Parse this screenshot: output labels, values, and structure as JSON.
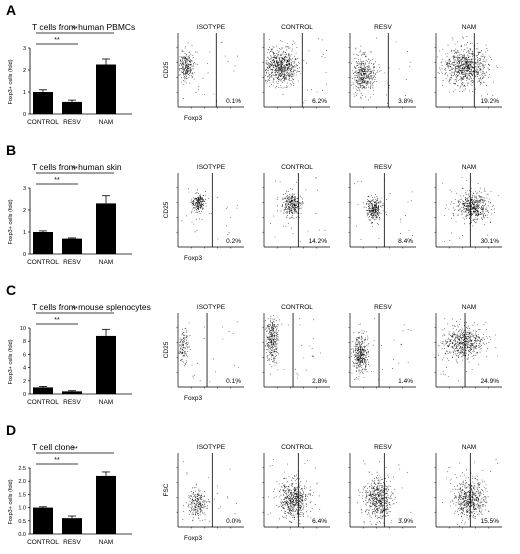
{
  "panels": [
    {
      "letter": "A",
      "title": "T cells from human PBMCs",
      "bar_ylabel": "Foxp3+ cells (fold)",
      "flow_ylabel": "CD25",
      "flow_xlabel": "Foxp3",
      "flow_titles": [
        "ISOTYPE",
        "CONTROL",
        "RESV",
        "NAM"
      ],
      "percentages": [
        "0.1%",
        "6.2%",
        "3.8%",
        "19.2%"
      ]
    },
    {
      "letter": "B",
      "title": "T cells from human skin",
      "bar_ylabel": "Foxp3+ cells (fold)",
      "flow_ylabel": "CD25",
      "flow_xlabel": "Foxp3",
      "flow_titles": [
        "ISOTYPE",
        "CONTROL",
        "RESV",
        "NAM"
      ],
      "percentages": [
        "0.2%",
        "14.2%",
        "8.4%",
        "30.1%"
      ]
    },
    {
      "letter": "C",
      "title": "T cells from mouse splenocytes",
      "bar_ylabel": "Foxp3+ cells (fold)",
      "flow_ylabel": "CD25",
      "flow_xlabel": "Foxp3",
      "flow_titles": [
        "ISOTYPE",
        "CONTROL",
        "RESV",
        "NAM"
      ],
      "percentages": [
        "0.1%",
        "2.8%",
        "1.4%",
        "24.9%"
      ]
    },
    {
      "letter": "D",
      "title": "T cell clone",
      "bar_ylabel": "Foxp3+ cells (fold)",
      "flow_ylabel": "FSC",
      "flow_xlabel": "Foxp3",
      "flow_titles": [
        "ISOTYPE",
        "CONTROL",
        "RESV",
        "NAM"
      ],
      "percentages": [
        "0.0%",
        "6.4%",
        "3.9%",
        "15.5%"
      ]
    }
  ],
  "chart_data": [
    {
      "type": "bar",
      "title": "T cells from human PBMCs",
      "ylabel": "Foxp3+ cells (fold)",
      "categories": [
        "CONTROL",
        "RESV",
        "NAM"
      ],
      "values": [
        1.0,
        0.55,
        2.25
      ],
      "errors": [
        0.1,
        0.08,
        0.25
      ],
      "ylim": [
        0,
        3
      ],
      "yticks": [
        "0",
        "1",
        "2",
        "3"
      ],
      "significance": [
        "**",
        "**"
      ]
    },
    {
      "type": "bar",
      "title": "T cells from human skin",
      "ylabel": "Foxp3+ cells (fold)",
      "categories": [
        "CONTROL",
        "RESV",
        "NAM"
      ],
      "values": [
        1.0,
        0.7,
        2.3
      ],
      "errors": [
        0.05,
        0.03,
        0.35
      ],
      "ylim": [
        0,
        3
      ],
      "yticks": [
        "0",
        "1",
        "2",
        "3"
      ],
      "significance": [
        "**",
        "**"
      ]
    },
    {
      "type": "bar",
      "title": "T cells from mouse splenocytes",
      "ylabel": "Foxp3+ cells (fold)",
      "categories": [
        "CONTROL",
        "RESV",
        "NAM"
      ],
      "values": [
        1.0,
        0.4,
        8.8
      ],
      "errors": [
        0.15,
        0.1,
        1.0
      ],
      "ylim": [
        0,
        10
      ],
      "yticks": [
        "0",
        "2",
        "4",
        "6",
        "8",
        "10"
      ],
      "significance": [
        "**",
        "**"
      ]
    },
    {
      "type": "bar",
      "title": "T cell clone",
      "ylabel": "Foxp3+ cells (fold)",
      "categories": [
        "CONTROL",
        "RESV",
        "NAM"
      ],
      "values": [
        1.0,
        0.6,
        2.2
      ],
      "errors": [
        0.03,
        0.08,
        0.15
      ],
      "ylim": [
        0,
        2.5
      ],
      "yticks": [
        "0.0",
        "0.5",
        "1.0",
        "1.5",
        "2.0",
        "2.5"
      ],
      "significance": [
        "**",
        "**"
      ]
    }
  ]
}
